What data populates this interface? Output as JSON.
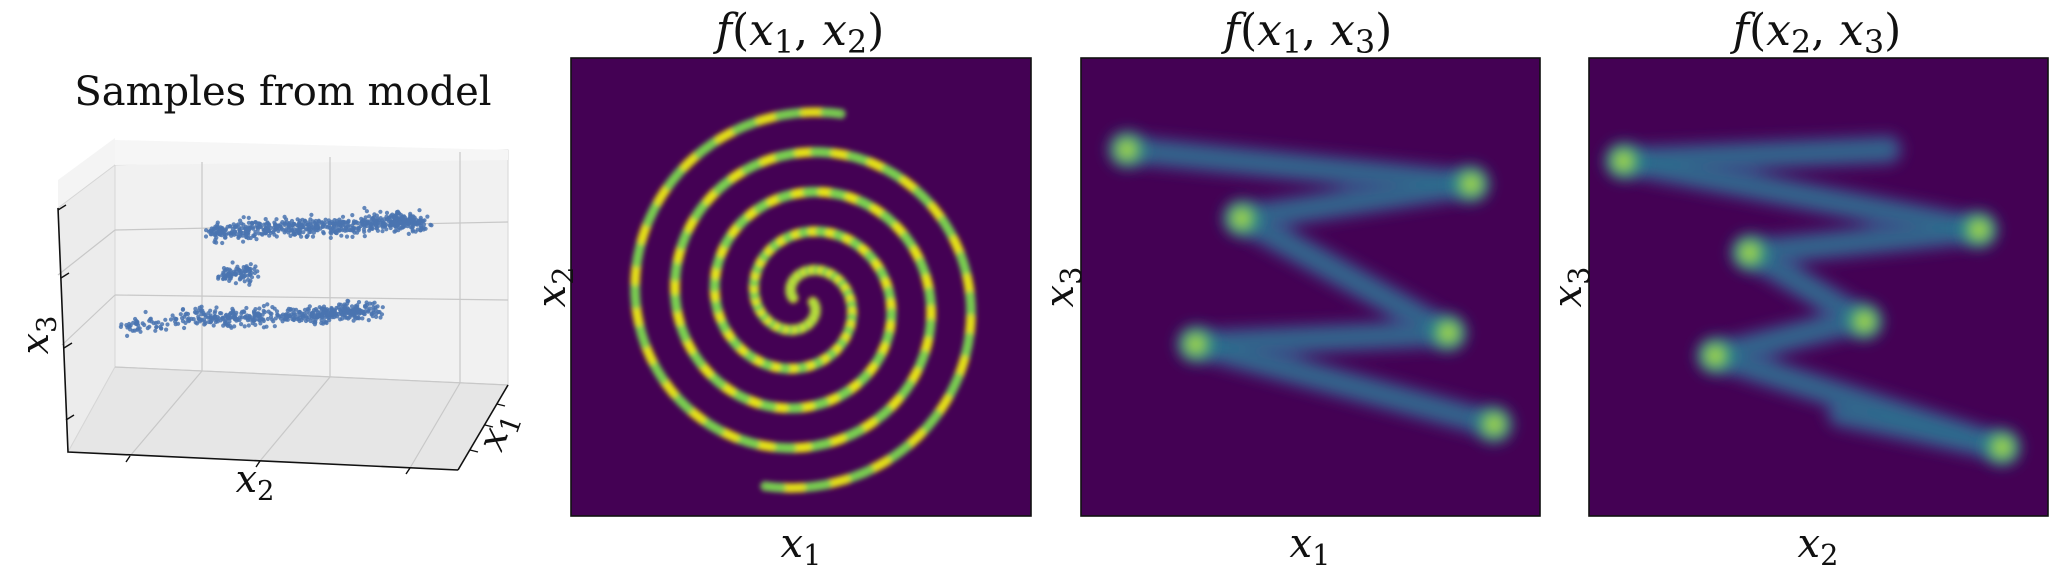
{
  "chart_data": [
    {
      "type": "scatter",
      "title": "Samples from model",
      "axes": {
        "x": "x",
        "y": "x",
        "z": "x"
      },
      "axis_subscripts": {
        "x": "1",
        "y": "2",
        "z": "3"
      },
      "projection": "3d",
      "grid": true,
      "marker_color": "#4a74b0",
      "clusters": [
        {
          "name": "",
          "points": [
            [
              -0.6,
              -0.9,
              0.0
            ],
            [
              -0.4,
              -0.7,
              0.0
            ],
            [
              0.0,
              -0.2,
              0.0
            ],
            [
              0.3,
              0.3,
              0.0
            ],
            [
              0.5,
              0.6,
              0.0
            ]
          ]
        },
        {
          "name": "",
          "points": [
            [
              -0.3,
              -0.4,
              1.0
            ],
            [
              0.0,
              0.0,
              1.0
            ],
            [
              0.4,
              0.8,
              1.0
            ]
          ]
        }
      ]
    },
    {
      "type": "heatmap",
      "title": "f",
      "title_args": [
        "x",
        "1",
        "x",
        "2"
      ],
      "xlabel": "x",
      "xlabel_sub": "1",
      "ylabel": "x",
      "ylabel_sub": "2",
      "colormap": "viridis",
      "shape": "two-arm spiral density",
      "xlim": [
        -1,
        1
      ],
      "ylim": [
        -1,
        1
      ]
    },
    {
      "type": "heatmap",
      "title": "f",
      "title_args": [
        "x",
        "1",
        "x",
        "3"
      ],
      "xlabel": "x",
      "xlabel_sub": "1",
      "ylabel": "x",
      "ylabel_sub": "3",
      "colormap": "viridis",
      "shape": "zig-zag density",
      "segments": [
        [
          [
            -0.8,
            0.6
          ],
          [
            0.7,
            0.45
          ]
        ],
        [
          [
            0.7,
            0.45
          ],
          [
            -0.3,
            0.3
          ]
        ],
        [
          [
            -0.3,
            0.3
          ],
          [
            0.6,
            -0.2
          ]
        ],
        [
          [
            0.6,
            -0.2
          ],
          [
            -0.5,
            -0.25
          ]
        ],
        [
          [
            -0.5,
            -0.25
          ],
          [
            0.8,
            -0.6
          ]
        ]
      ],
      "peaks": [
        [
          0.7,
          0.45
        ],
        [
          -0.5,
          -0.25
        ],
        [
          -0.3,
          0.3
        ],
        [
          0.6,
          -0.2
        ],
        [
          -0.8,
          0.6
        ],
        [
          0.8,
          -0.6
        ]
      ],
      "xlim": [
        -1,
        1
      ],
      "ylim": [
        -1,
        1
      ]
    },
    {
      "type": "heatmap",
      "title": "f",
      "title_args": [
        "x",
        "2",
        "x",
        "3"
      ],
      "xlabel": "x",
      "xlabel_sub": "2",
      "ylabel": "x",
      "ylabel_sub": "3",
      "colormap": "viridis",
      "shape": "zig-zag density",
      "segments": [
        [
          [
            -0.85,
            0.55
          ],
          [
            0.3,
            0.6
          ]
        ],
        [
          [
            -0.85,
            0.55
          ],
          [
            0.7,
            0.25
          ]
        ],
        [
          [
            0.7,
            0.25
          ],
          [
            -0.3,
            0.15
          ]
        ],
        [
          [
            -0.3,
            0.15
          ],
          [
            0.2,
            -0.15
          ]
        ],
        [
          [
            -0.45,
            -0.3
          ],
          [
            0.15,
            -0.15
          ]
        ],
        [
          [
            -0.45,
            -0.3
          ],
          [
            0.8,
            -0.7
          ]
        ],
        [
          [
            0.1,
            -0.55
          ],
          [
            0.8,
            -0.7
          ]
        ]
      ],
      "peaks": [
        [
          -0.85,
          0.55
        ],
        [
          0.7,
          0.25
        ],
        [
          -0.45,
          -0.3
        ],
        [
          0.8,
          -0.7
        ],
        [
          -0.3,
          0.15
        ],
        [
          0.2,
          -0.15
        ]
      ],
      "xlim": [
        -1,
        1
      ],
      "ylim": [
        -1,
        1
      ]
    }
  ]
}
